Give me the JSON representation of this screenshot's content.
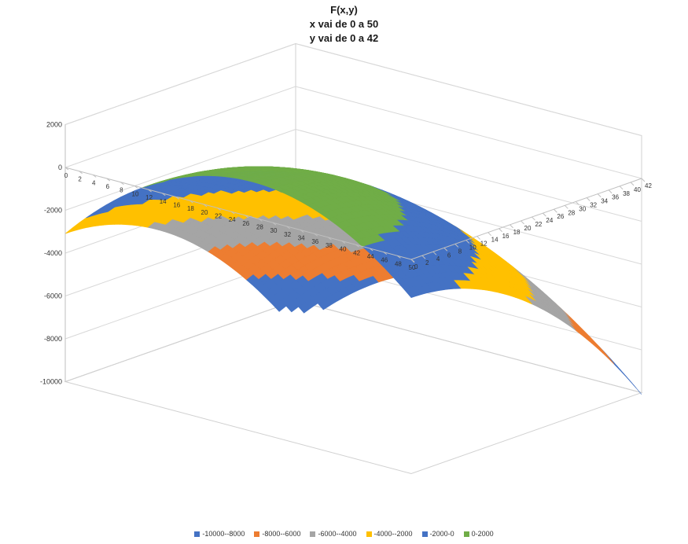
{
  "chart_data": {
    "type": "surface",
    "title": "F(x,y)",
    "subtitle": [
      "x vai de 0 a 50",
      "y vai de 0 a 42"
    ],
    "x_range": [
      0,
      50
    ],
    "y_range": [
      0,
      42
    ],
    "x_ticks": [
      "0",
      "2",
      "4",
      "6",
      "8",
      "10",
      "12",
      "14",
      "16",
      "18",
      "20",
      "22",
      "24",
      "26",
      "28",
      "30",
      "32",
      "34",
      "36",
      "38",
      "40",
      "42",
      "44",
      "46",
      "48",
      "50"
    ],
    "y_ticks": [
      "0",
      "2",
      "4",
      "6",
      "8",
      "10",
      "12",
      "14",
      "16",
      "18",
      "20",
      "22",
      "24",
      "26",
      "28",
      "30",
      "32",
      "34",
      "36",
      "38",
      "40",
      "42"
    ],
    "z_ticks": [
      "2000",
      "0",
      "-2000",
      "-4000",
      "-6000",
      "-8000",
      "-10000"
    ],
    "zlim": [
      -10000,
      2000
    ],
    "grid": true,
    "legend_position": "bottom",
    "legend": [
      {
        "label": "-10000--8000",
        "color": "#4472C4"
      },
      {
        "label": "-8000--6000",
        "color": "#ED7D31"
      },
      {
        "label": "-6000--4000",
        "color": "#A5A5A5"
      },
      {
        "label": "-4000--2000",
        "color": "#FFC000"
      },
      {
        "label": "-2000-0",
        "color": "#4472C4"
      },
      {
        "label": "0-2000",
        "color": "#70AD47"
      }
    ]
  }
}
